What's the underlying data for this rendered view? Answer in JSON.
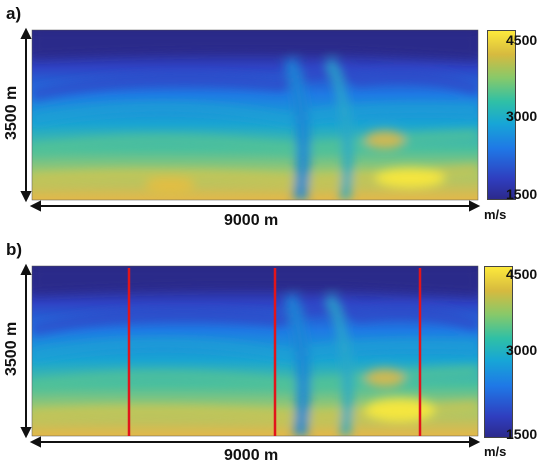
{
  "panels": [
    {
      "label": "a)",
      "depth_label": "3500 m",
      "width_label": "9000 m",
      "colorbar": {
        "ticks": [
          "4500",
          "3000",
          "1500"
        ],
        "unit": "m/s"
      }
    },
    {
      "label": "b)",
      "depth_label": "3500 m",
      "width_label": "9000 m",
      "colorbar": {
        "ticks": [
          "4500",
          "3000",
          "1500"
        ],
        "unit": "m/s"
      },
      "well_line_color": "#e1151b"
    }
  ],
  "colormap": [
    "#2c2a8c",
    "#1f78e6",
    "#2fc0a6",
    "#d6ba3f",
    "#fde93b"
  ]
}
